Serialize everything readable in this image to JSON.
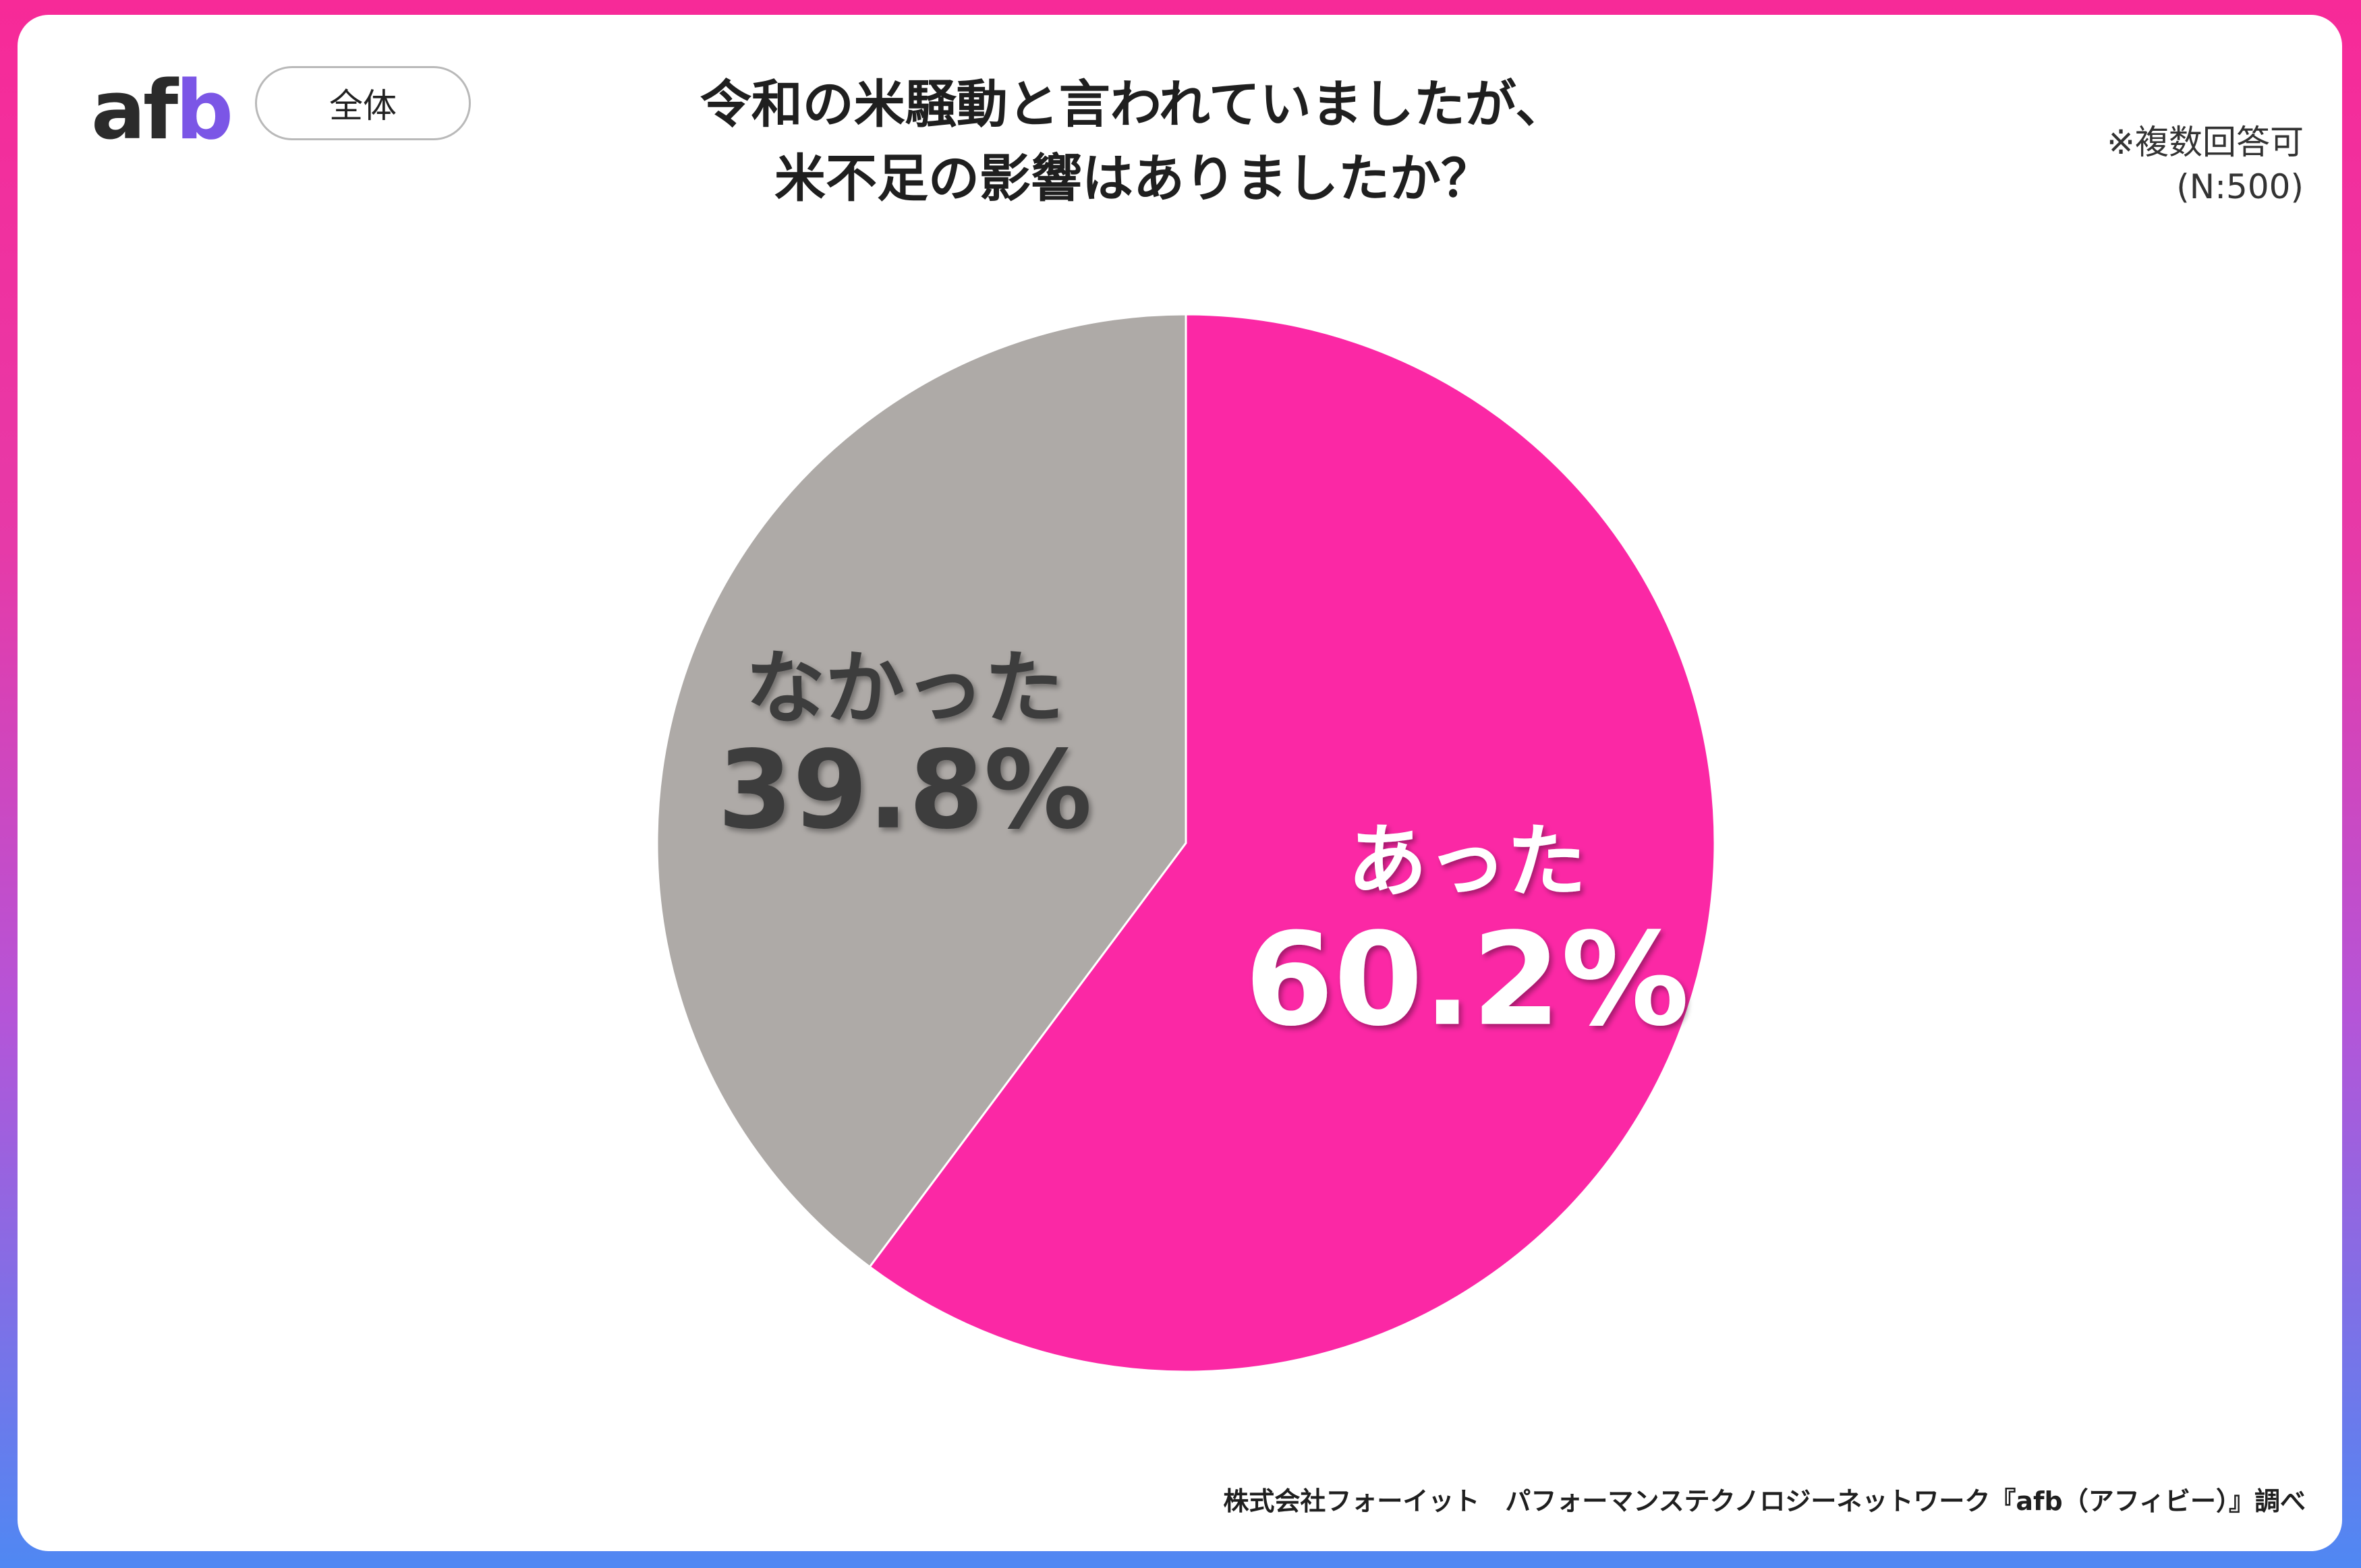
{
  "header": {
    "logo": {
      "a": "a",
      "f": "f",
      "b": "b"
    },
    "segment_label": "全体",
    "title_lines": [
      "令和の米騒動と言われていましたが、",
      "米不足の影響はありましたか？"
    ],
    "note_lines": [
      "※複数回答可",
      "(N:500)"
    ]
  },
  "footer": {
    "credit": "株式会社フォーイット　パフォーマンステクノロジーネットワーク『afb（アフィビー）』調べ"
  },
  "colors": {
    "pink": "#fb28a5",
    "gray": "#aeaaa7",
    "label_dark": "#3d3d3d",
    "label_light": "#ffffff"
  },
  "chart_data": {
    "type": "pie",
    "slices": [
      {
        "label": "あった",
        "value": 60.2,
        "display": "60.2%",
        "color": "#fb28a5"
      },
      {
        "label": "なかった",
        "value": 39.8,
        "display": "39.8%",
        "color": "#aeaaa7"
      }
    ]
  }
}
